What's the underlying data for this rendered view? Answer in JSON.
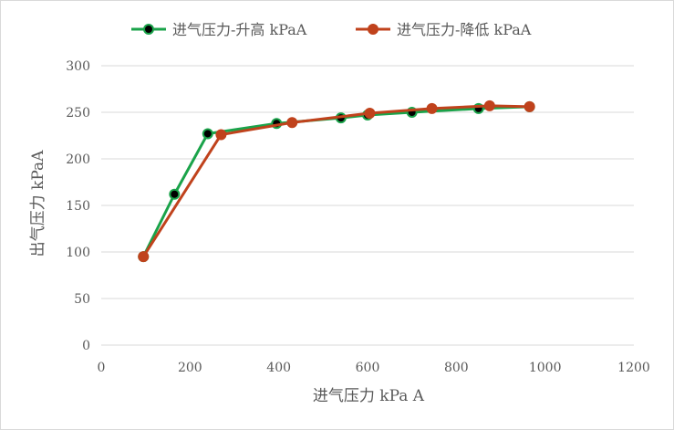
{
  "chart_data": {
    "type": "line",
    "title": "",
    "xlabel": "进气压力 kPa A",
    "ylabel": "出气压力 kPaA",
    "xlim": [
      0,
      1200
    ],
    "ylim": [
      0,
      300
    ],
    "xticks": [
      0,
      200,
      400,
      600,
      800,
      1000,
      1200
    ],
    "yticks": [
      0,
      50,
      100,
      150,
      200,
      250,
      300
    ],
    "xtick_labels": [
      "0",
      "200",
      "400",
      "600",
      "800",
      "1000",
      "1200"
    ],
    "ytick_labels": [
      "0",
      "50",
      "100",
      "150",
      "200",
      "250",
      "300"
    ],
    "grid": "horizontal",
    "legend_position": "top",
    "series": [
      {
        "name": "进气压力-升高 kPaA",
        "color": "#1aa34a",
        "marker_fill": "#000000",
        "x": [
          95,
          165,
          240,
          395,
          540,
          600,
          700,
          850,
          965
        ],
        "y": [
          95,
          162,
          227,
          238,
          244,
          247,
          250,
          254,
          256
        ]
      },
      {
        "name": "进气压力-降低 kPaA",
        "color": "#c0421c",
        "marker_fill": "#c0421c",
        "x": [
          965,
          875,
          745,
          605,
          430,
          270,
          95
        ],
        "y": [
          256,
          257,
          254,
          249,
          239,
          226,
          95
        ]
      }
    ]
  }
}
